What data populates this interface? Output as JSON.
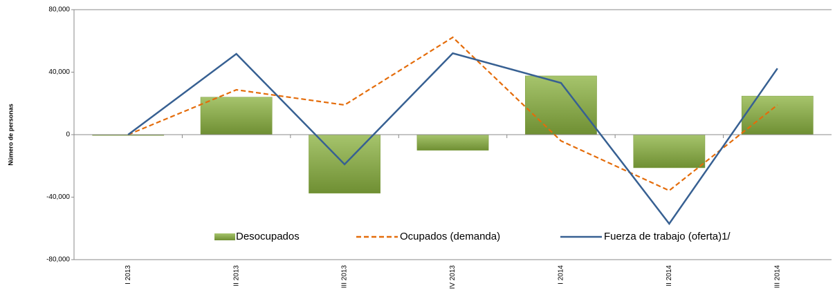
{
  "chart_data": {
    "type": "bar-line",
    "y_label": "Número de personas",
    "categories": [
      "I 2013",
      "II 2013",
      "III 2013",
      "IV 2013",
      "I 2014",
      "II 2014",
      "III 2014"
    ],
    "series": [
      {
        "name": "Desocupados",
        "type": "bar",
        "color": "#8aab45",
        "values": [
          -500,
          24000,
          -37500,
          -10000,
          37600,
          -21200,
          24700
        ]
      },
      {
        "name": "Ocupados (demanda)",
        "type": "line",
        "dash": true,
        "color": "#e46c0a",
        "values": [
          0,
          28700,
          19000,
          62300,
          -4000,
          -35800,
          19000
        ]
      },
      {
        "name": "Fuerza de trabajo (oferta)1/",
        "type": "line",
        "dash": false,
        "color": "#376092",
        "values": [
          0,
          51700,
          -19000,
          52100,
          33100,
          -57000,
          42400
        ]
      }
    ],
    "ylim": [
      -80000,
      80000
    ],
    "yticks": [
      {
        "value": -80000,
        "label": "-80,000"
      },
      {
        "value": -40000,
        "label": "-40,000"
      },
      0,
      {
        "value": 40000,
        "label": "40,000"
      },
      {
        "value": 80000,
        "label": "80,000"
      }
    ],
    "legend": "bottom"
  }
}
